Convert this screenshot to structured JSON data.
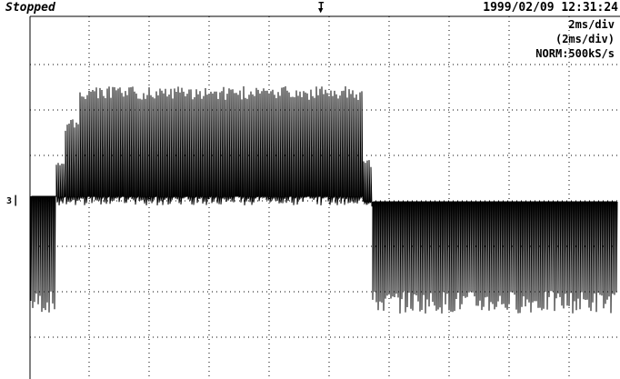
{
  "header": {
    "status": "Stopped",
    "trigger_marker": "T",
    "timestamp": "1999/02/09  12:31:24"
  },
  "settings": {
    "timebase": "2ms/div",
    "timebase_sub": "(2ms/div)",
    "acquisition": "NORM:500kS/s"
  },
  "channel": {
    "marker": "3"
  },
  "colors": {
    "trace": "#000000",
    "grid": "#000000",
    "background": "#ffffff"
  }
}
